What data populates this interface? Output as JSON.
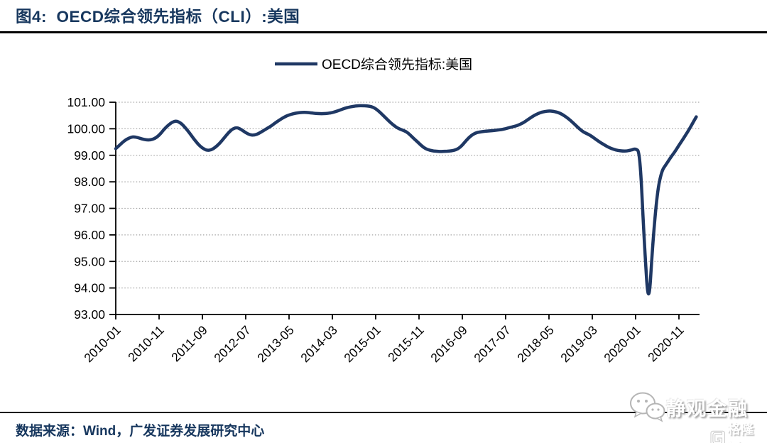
{
  "header": {
    "title": "图4:  OECD综合领先指标（CLI）:美国"
  },
  "footer": {
    "source": "数据来源：Wind，广发证券发展研究中心"
  },
  "watermark": {
    "wechat_account": "静观金融",
    "platform_logo": "格隆汇"
  },
  "colors": {
    "line": "#1F3864",
    "title_text": "#17375E",
    "footer_text": "#17375E",
    "axis": "#000000",
    "gridline": "#A6A6A6",
    "rule": "#000000",
    "background": "#FFFFFF"
  },
  "chart_data": {
    "type": "line",
    "legend": [
      "OECD综合领先指标:美国"
    ],
    "legend_position": "top-center",
    "grid": "horizontal-dotted",
    "ylim": [
      93,
      101
    ],
    "y_tick_labels": [
      "101.00",
      "100.00",
      "99.00",
      "98.00",
      "97.00",
      "96.00",
      "95.00",
      "94.00",
      "93.00"
    ],
    "x_tick_labels": [
      "2010-01",
      "2010-11",
      "2011-09",
      "2012-07",
      "2013-05",
      "2014-03",
      "2015-01",
      "2015-11",
      "2016-09",
      "2017-07",
      "2018-05",
      "2019-03",
      "2020-01",
      "2020-11"
    ],
    "x_tick_every_n_months": 10,
    "x": [
      "2010-01",
      "2010-02",
      "2010-03",
      "2010-04",
      "2010-05",
      "2010-06",
      "2010-07",
      "2010-08",
      "2010-09",
      "2010-10",
      "2010-11",
      "2010-12",
      "2011-01",
      "2011-02",
      "2011-03",
      "2011-04",
      "2011-05",
      "2011-06",
      "2011-07",
      "2011-08",
      "2011-09",
      "2011-10",
      "2011-11",
      "2011-12",
      "2012-01",
      "2012-02",
      "2012-03",
      "2012-04",
      "2012-05",
      "2012-06",
      "2012-07",
      "2012-08",
      "2012-09",
      "2012-10",
      "2012-11",
      "2012-12",
      "2013-01",
      "2013-02",
      "2013-03",
      "2013-04",
      "2013-05",
      "2013-06",
      "2013-07",
      "2013-08",
      "2013-09",
      "2013-10",
      "2013-11",
      "2013-12",
      "2014-01",
      "2014-02",
      "2014-03",
      "2014-04",
      "2014-05",
      "2014-06",
      "2014-07",
      "2014-08",
      "2014-09",
      "2014-10",
      "2014-11",
      "2014-12",
      "2015-01",
      "2015-02",
      "2015-03",
      "2015-04",
      "2015-05",
      "2015-06",
      "2015-07",
      "2015-08",
      "2015-09",
      "2015-10",
      "2015-11",
      "2015-12",
      "2016-01",
      "2016-02",
      "2016-03",
      "2016-04",
      "2016-05",
      "2016-06",
      "2016-07",
      "2016-08",
      "2016-09",
      "2016-10",
      "2016-11",
      "2016-12",
      "2017-01",
      "2017-02",
      "2017-03",
      "2017-04",
      "2017-05",
      "2017-06",
      "2017-07",
      "2017-08",
      "2017-09",
      "2017-10",
      "2017-11",
      "2017-12",
      "2018-01",
      "2018-02",
      "2018-03",
      "2018-04",
      "2018-05",
      "2018-06",
      "2018-07",
      "2018-08",
      "2018-09",
      "2018-10",
      "2018-11",
      "2018-12",
      "2019-01",
      "2019-02",
      "2019-03",
      "2019-04",
      "2019-05",
      "2019-06",
      "2019-07",
      "2019-08",
      "2019-09",
      "2019-10",
      "2019-11",
      "2019-12",
      "2020-01",
      "2020-02",
      "2020-03",
      "2020-04",
      "2020-05",
      "2020-06",
      "2020-07",
      "2020-08",
      "2020-09",
      "2020-10",
      "2020-11",
      "2020-12",
      "2021-01",
      "2021-02",
      "2021-03"
    ],
    "series": [
      {
        "name": "OECD综合领先指标:美国",
        "values": [
          99.25,
          99.4,
          99.55,
          99.65,
          99.7,
          99.67,
          99.62,
          99.58,
          99.58,
          99.63,
          99.75,
          99.95,
          100.12,
          100.25,
          100.3,
          100.22,
          100.05,
          99.85,
          99.62,
          99.42,
          99.27,
          99.18,
          99.2,
          99.3,
          99.45,
          99.65,
          99.85,
          100.0,
          100.05,
          99.97,
          99.85,
          99.77,
          99.76,
          99.82,
          99.92,
          100.02,
          100.12,
          100.24,
          100.35,
          100.45,
          100.52,
          100.57,
          100.6,
          100.62,
          100.62,
          100.6,
          100.58,
          100.57,
          100.57,
          100.58,
          100.61,
          100.66,
          100.72,
          100.78,
          100.82,
          100.85,
          100.87,
          100.87,
          100.86,
          100.84,
          100.76,
          100.62,
          100.46,
          100.3,
          100.15,
          100.03,
          99.96,
          99.9,
          99.76,
          99.6,
          99.45,
          99.3,
          99.21,
          99.17,
          99.15,
          99.14,
          99.15,
          99.16,
          99.18,
          99.24,
          99.38,
          99.58,
          99.74,
          99.84,
          99.88,
          99.9,
          99.92,
          99.93,
          99.95,
          99.97,
          100.0,
          100.05,
          100.09,
          100.14,
          100.22,
          100.33,
          100.44,
          100.54,
          100.61,
          100.65,
          100.67,
          100.66,
          100.62,
          100.55,
          100.44,
          100.31,
          100.16,
          100.0,
          99.87,
          99.8,
          99.7,
          99.58,
          99.47,
          99.37,
          99.28,
          99.22,
          99.18,
          99.16,
          99.16,
          99.2,
          99.25,
          99.12,
          95.7,
          93.12,
          95.8,
          97.6,
          98.4,
          98.65,
          98.9,
          99.12,
          99.38,
          99.62,
          99.88,
          100.16,
          100.45
        ]
      }
    ]
  }
}
